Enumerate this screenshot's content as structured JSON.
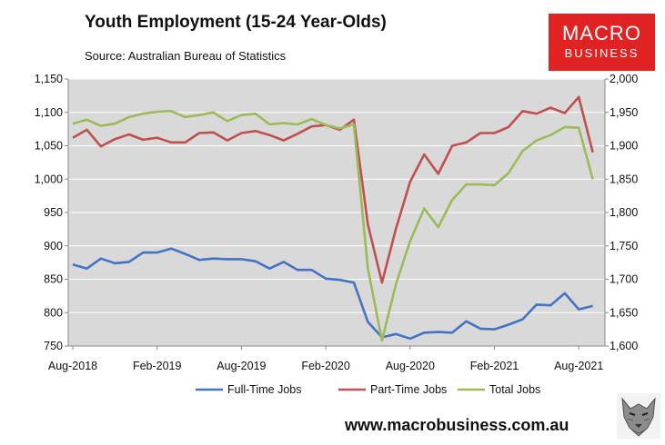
{
  "chart_data": {
    "type": "line",
    "title": "Youth Employment (15-24 Year-Olds)",
    "subtitle": "Source: Australian Bureau of Statistics",
    "x_tick_labels": [
      "Aug-2018",
      "Feb-2019",
      "Aug-2019",
      "Feb-2020",
      "Aug-2020",
      "Feb-2021",
      "Aug-2021"
    ],
    "y_left": {
      "ylim": [
        750,
        1150
      ],
      "ticks": [
        "750",
        "800",
        "850",
        "900",
        "950",
        "1,000",
        "1,050",
        "1,100",
        "1,150"
      ]
    },
    "y_right": {
      "ylim": [
        1600,
        2000
      ],
      "ticks": [
        "1,600",
        "1,650",
        "1,700",
        "1,750",
        "1,800",
        "1,850",
        "1,900",
        "1,950",
        "2,000"
      ]
    },
    "grid": true,
    "legend_position": "bottom",
    "series": [
      {
        "name": "Full-Time Jobs",
        "axis": "left",
        "color": "#4472c4",
        "values": [
          872,
          866,
          881,
          874,
          876,
          890,
          890,
          896,
          888,
          879,
          881,
          880,
          880,
          877,
          866,
          876,
          864,
          864,
          851,
          849,
          845,
          786,
          763,
          768,
          761,
          770,
          771,
          770,
          787,
          776,
          775,
          782,
          790,
          812,
          811,
          829,
          805,
          810
        ]
      },
      {
        "name": "Part-Time Jobs",
        "axis": "left",
        "color": "#c0504d",
        "values": [
          1062,
          1074,
          1049,
          1060,
          1067,
          1059,
          1062,
          1055,
          1055,
          1069,
          1070,
          1058,
          1069,
          1072,
          1066,
          1058,
          1068,
          1079,
          1081,
          1074,
          1089,
          932,
          845,
          926,
          996,
          1037,
          1008,
          1050,
          1055,
          1069,
          1069,
          1078,
          1102,
          1098,
          1107,
          1099,
          1123,
          1040
        ]
      },
      {
        "name": "Total Jobs",
        "axis": "right",
        "color": "#9bbb59",
        "values": [
          1933,
          1939,
          1930,
          1933,
          1943,
          1948,
          1951,
          1952,
          1943,
          1946,
          1950,
          1937,
          1946,
          1948,
          1932,
          1934,
          1932,
          1940,
          1931,
          1926,
          1932,
          1716,
          1608,
          1693,
          1757,
          1806,
          1778,
          1819,
          1842,
          1842,
          1841,
          1859,
          1892,
          1908,
          1916,
          1928,
          1927,
          1850
        ]
      }
    ]
  },
  "branding": {
    "logo_line1": "MACRO",
    "logo_line2": "BUSINESS",
    "website": "www.macrobusiness.com.au",
    "mascot_icon": "wolf-icon"
  }
}
